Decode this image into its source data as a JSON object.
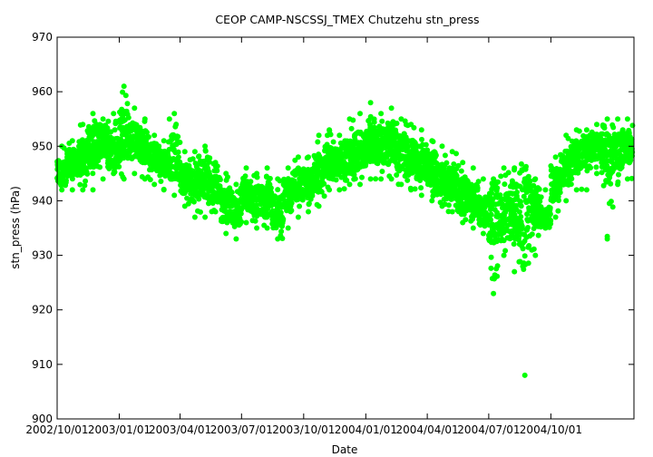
{
  "chart_data": {
    "type": "scatter",
    "title": "CEOP CAMP-NSCSSJ_TMEX Chutzehu  stn_press",
    "xlabel": "Date",
    "ylabel": "stn_press (hPa)",
    "ylim": [
      900,
      970
    ],
    "yticks": [
      900,
      910,
      920,
      930,
      940,
      950,
      960,
      970
    ],
    "xlim": [
      "2002-10-01",
      "2005-02-01"
    ],
    "xticks": [
      "2002/10/01",
      "2003/01/01",
      "2003/04/01",
      "2003/07/01",
      "2003/10/01",
      "2004/01/01",
      "2004/04/01",
      "2004/07/01",
      "2004/10/01"
    ],
    "grid": false,
    "legend": "none",
    "colors": {
      "series": "#00ff00"
    },
    "series": [
      {
        "x_dates": [
          "2002-10-01",
          "2002-10-15",
          "2002-11-01",
          "2002-11-15",
          "2002-12-01",
          "2002-12-15",
          "2003-01-01",
          "2003-01-15",
          "2003-02-01",
          "2003-02-15",
          "2003-03-01",
          "2003-03-15",
          "2003-04-01",
          "2003-04-15",
          "2003-05-01",
          "2003-05-15",
          "2003-06-01",
          "2003-06-15",
          "2003-07-01",
          "2003-07-15",
          "2003-08-01",
          "2003-08-15",
          "2003-09-01",
          "2003-09-15",
          "2003-10-01",
          "2003-10-15",
          "2003-11-01",
          "2003-11-15",
          "2003-12-01",
          "2003-12-15",
          "2004-01-01",
          "2004-01-15",
          "2004-02-01",
          "2004-02-15",
          "2004-03-01",
          "2004-03-15",
          "2004-04-01",
          "2004-04-15",
          "2004-05-01",
          "2004-05-15",
          "2004-06-01",
          "2004-06-15",
          "2004-07-01",
          "2004-07-15",
          "2004-08-01",
          "2004-08-15",
          "2004-09-01",
          "2004-09-15",
          "2004-10-01",
          "2004-10-15",
          "2004-11-01",
          "2004-11-15",
          "2004-12-01",
          "2004-12-15",
          "2005-01-01",
          "2005-01-15"
        ],
        "y_mean": [
          945,
          947,
          948,
          950,
          951,
          949,
          952,
          951,
          950,
          948,
          947,
          948,
          944,
          943,
          944,
          942,
          939,
          938,
          941,
          940,
          940,
          938,
          941,
          943,
          943,
          945,
          947,
          947,
          948,
          949,
          951,
          950,
          951,
          949,
          948,
          947,
          946,
          944,
          943,
          941,
          940,
          938,
          938,
          937,
          938,
          937,
          939,
          937,
          943,
          946,
          948,
          949,
          950,
          948,
          949,
          950
        ],
        "y_min": [
          942,
          942,
          942,
          942,
          944,
          945,
          944,
          945,
          944,
          943,
          942,
          941,
          939,
          937,
          937,
          938,
          934,
          933,
          936,
          935,
          935,
          933,
          935,
          937,
          938,
          939,
          942,
          942,
          943,
          943,
          944,
          944,
          944,
          943,
          942,
          941,
          940,
          939,
          938,
          936,
          935,
          934,
          923,
          930,
          927,
          908,
          930,
          935,
          937,
          940,
          942,
          942,
          945,
          933,
          943,
          944
        ],
        "y_max": [
          950,
          951,
          954,
          956,
          955,
          956,
          961,
          957,
          955,
          952,
          951,
          956,
          949,
          949,
          950,
          947,
          945,
          943,
          946,
          945,
          946,
          944,
          946,
          948,
          948,
          952,
          953,
          952,
          955,
          956,
          958,
          956,
          957,
          955,
          954,
          953,
          951,
          950,
          949,
          947,
          946,
          944,
          944,
          946,
          946,
          944,
          944,
          942,
          948,
          952,
          953,
          953,
          954,
          955,
          955,
          955
        ]
      }
    ]
  }
}
